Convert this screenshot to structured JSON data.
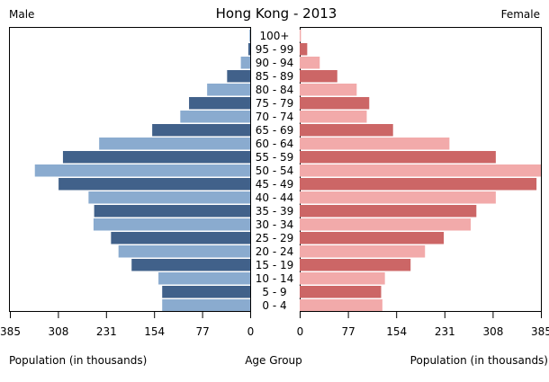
{
  "chart_data": {
    "type": "bar",
    "title": "Hong Kong - 2013",
    "left_label": "Male",
    "right_label": "Female",
    "xlabel_left": "Population (in thousands)",
    "xlabel_center": "Age Group",
    "xlabel_right": "Population (in thousands)",
    "xlim": [
      0,
      385
    ],
    "x_ticks": [
      0,
      77,
      154,
      231,
      308,
      385
    ],
    "x_tick_labels_left": [
      "385",
      "308",
      "231",
      "154",
      "77",
      "0"
    ],
    "x_tick_labels_right": [
      "0",
      "77",
      "154",
      "231",
      "308",
      "385"
    ],
    "categories": [
      "100+",
      "95 - 99",
      "90 - 94",
      "85 - 89",
      "80 - 84",
      "75 - 79",
      "70 - 74",
      "65 - 69",
      "60 - 64",
      "55 - 59",
      "50 - 54",
      "45 - 49",
      "40 - 44",
      "35 - 39",
      "30 - 34",
      "25 - 29",
      "20 - 24",
      "15 - 19",
      "10 - 14",
      "5 - 9",
      "0 - 4"
    ],
    "series": [
      {
        "name": "Male",
        "values": [
          0.3,
          3,
          15,
          37,
          69,
          98,
          112,
          157,
          242,
          300,
          345,
          307,
          259,
          250,
          251,
          223,
          211,
          190,
          147,
          141,
          141
        ],
        "colors": [
          "#8aabcf",
          "#41618a"
        ]
      },
      {
        "name": "Female",
        "values": [
          2,
          12,
          32,
          60,
          91,
          111,
          107,
          149,
          239,
          313,
          385,
          378,
          313,
          282,
          273,
          230,
          200,
          177,
          136,
          130,
          132
        ],
        "colors": [
          "#f2aaaa",
          "#cc6666"
        ]
      }
    ]
  }
}
